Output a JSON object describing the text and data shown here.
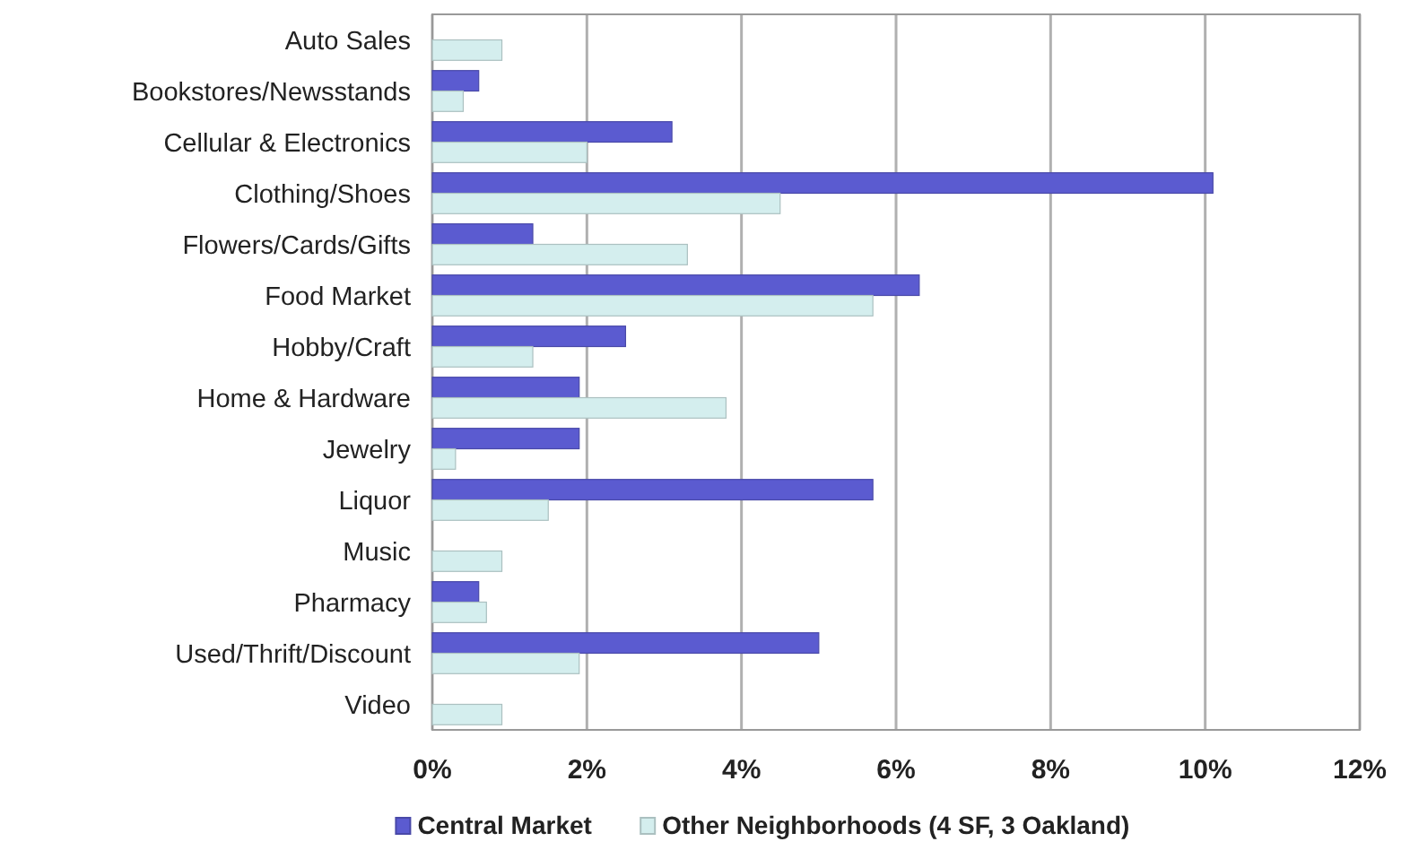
{
  "chart_data": {
    "type": "bar",
    "orientation": "horizontal",
    "categories": [
      "Auto Sales",
      "Bookstores/Newsstands",
      "Cellular & Electronics",
      "Clothing/Shoes",
      "Flowers/Cards/Gifts",
      "Food Market",
      "Hobby/Craft",
      "Home & Hardware",
      "Jewelry",
      "Liquor",
      "Music",
      "Pharmacy",
      "Used/Thrift/Discount",
      "Video"
    ],
    "series": [
      {
        "name": "Central Market",
        "color": "#5b5bd0",
        "values": [
          0,
          0.6,
          3.1,
          10.1,
          1.3,
          6.3,
          2.5,
          1.9,
          1.9,
          5.7,
          0,
          0.6,
          5.0,
          0
        ]
      },
      {
        "name": "Other Neighborhoods (4 SF, 3 Oakland)",
        "color": "#d4eeee",
        "values": [
          0.9,
          0.4,
          2.0,
          4.5,
          3.3,
          5.7,
          1.3,
          3.8,
          0.3,
          1.5,
          0.9,
          0.7,
          1.9,
          0.9
        ]
      }
    ],
    "xlim": [
      0,
      12
    ],
    "xticks": [
      {
        "value": 0,
        "label": "0%"
      },
      {
        "value": 2,
        "label": "2%"
      },
      {
        "value": 4,
        "label": "4%"
      },
      {
        "value": 6,
        "label": "6%"
      },
      {
        "value": 8,
        "label": "8%"
      },
      {
        "value": 10,
        "label": "10%"
      },
      {
        "value": 12,
        "label": "12%"
      }
    ],
    "grid": "x",
    "legend": "bottom"
  }
}
